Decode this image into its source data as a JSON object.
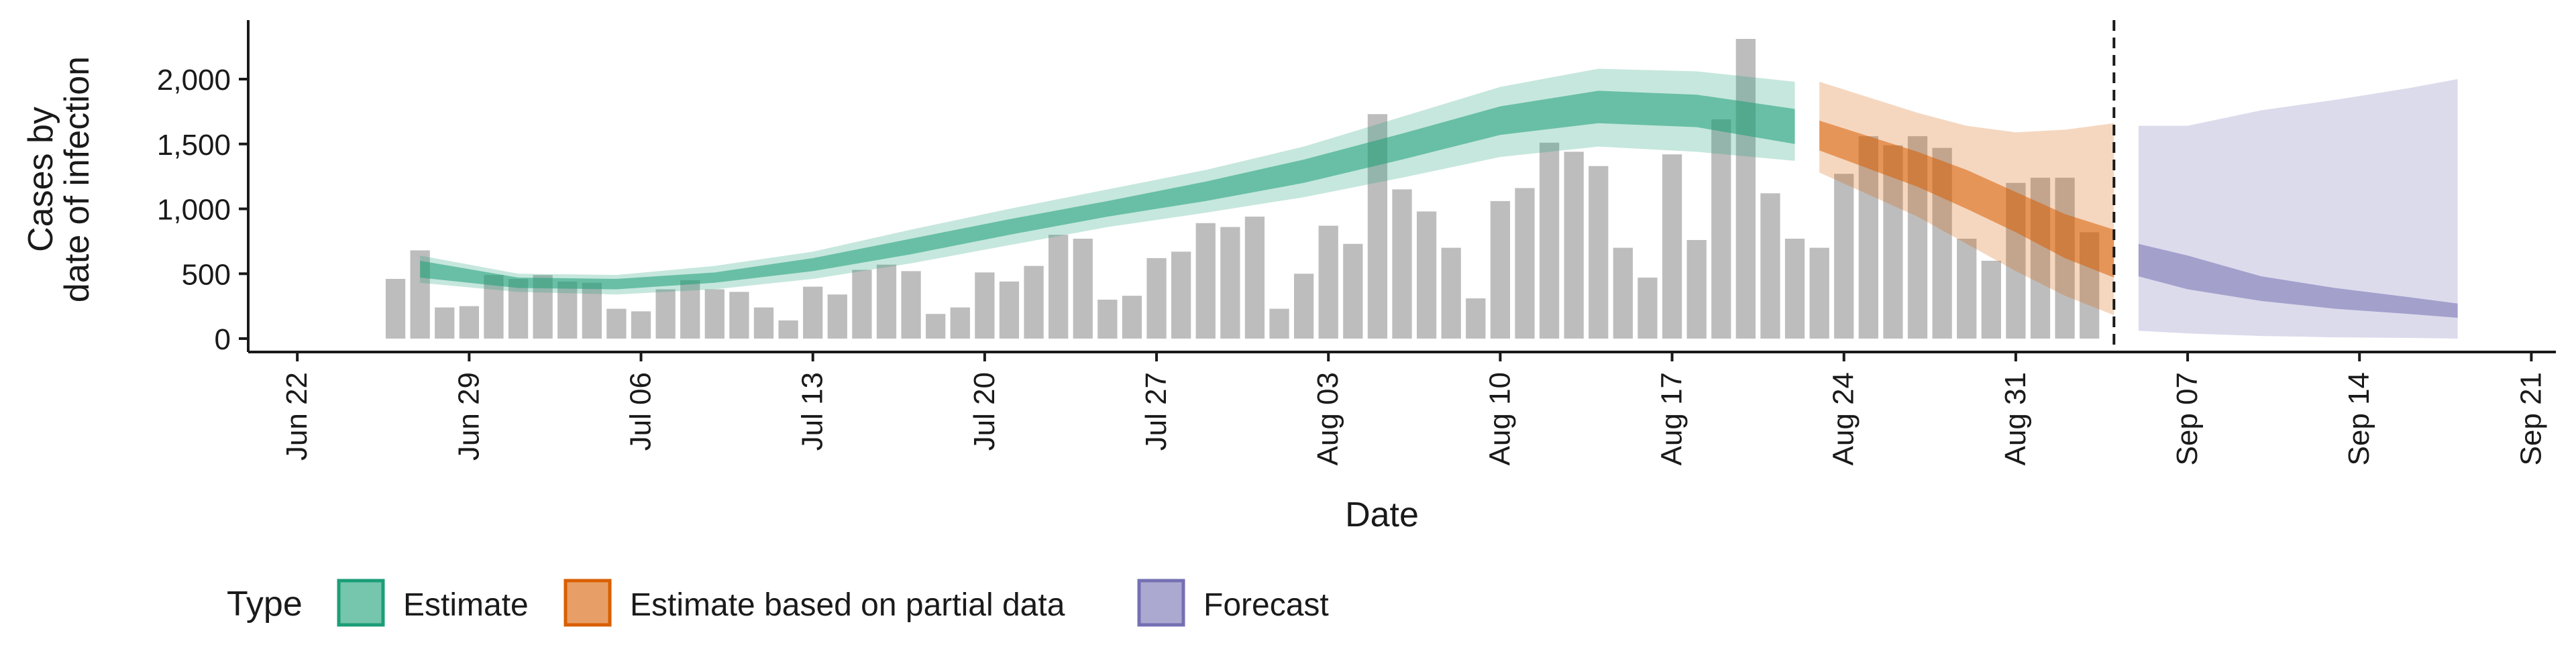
{
  "chart_data": {
    "type": "bar",
    "ylabel_lines": [
      "Cases by",
      "date of infection"
    ],
    "xlabel": "Date",
    "ylim": [
      0,
      2450
    ],
    "xlim": [
      "2020-06-20",
      "2020-09-22"
    ],
    "y_ticks": [
      0,
      500,
      1000,
      1500,
      2000
    ],
    "y_tick_labels": [
      "0",
      "500",
      "1,000",
      "1,500",
      "2,000"
    ],
    "x_ticks": [
      "2020-06-22",
      "2020-06-29",
      "2020-07-06",
      "2020-07-13",
      "2020-07-20",
      "2020-07-27",
      "2020-08-03",
      "2020-08-10",
      "2020-08-17",
      "2020-08-24",
      "2020-08-31",
      "2020-09-07",
      "2020-09-14",
      "2020-09-21"
    ],
    "x_tick_labels": [
      "Jun 22",
      "Jun 29",
      "Jul 06",
      "Jul 13",
      "Jul 20",
      "Jul 27",
      "Aug 03",
      "Aug 10",
      "Aug 17",
      "Aug 24",
      "Aug 31",
      "Sep 07",
      "Sep 14",
      "Sep 21"
    ],
    "grid": false,
    "legend": {
      "title": "Type",
      "position": "bottom",
      "entries": [
        {
          "label": "Estimate",
          "fill": "#1b9e77",
          "border": "#1b9e77"
        },
        {
          "label": "Estimate based on partial data",
          "fill": "#d95f02",
          "border": "#d95f02"
        },
        {
          "label": "Forecast",
          "fill": "#7570b3",
          "border": "#7570b3"
        }
      ]
    },
    "colors": {
      "bars": "#bdbdbd",
      "estimate": "#1b9e77",
      "partial": "#d95f02",
      "forecast": "#7570b3",
      "axis": "#1a1a1a"
    },
    "vline_date": "2020-09-04",
    "observed_cases": {
      "start_date": "2020-06-26",
      "values": [
        460,
        680,
        240,
        250,
        490,
        460,
        490,
        440,
        430,
        230,
        210,
        380,
        450,
        380,
        360,
        240,
        140,
        400,
        340,
        530,
        570,
        520,
        190,
        240,
        510,
        440,
        560,
        800,
        770,
        300,
        330,
        620,
        670,
        890,
        860,
        940,
        230,
        500,
        870,
        730,
        1730,
        1150,
        980,
        700,
        310,
        1060,
        1160,
        1510,
        1440,
        1330,
        700,
        470,
        1420,
        760,
        1690,
        2310,
        1120,
        770,
        700,
        1270,
        1560,
        1490,
        1560,
        1470,
        770,
        600,
        1200,
        1240,
        1240,
        820
      ]
    },
    "estimate": {
      "dates": [
        "2020-06-27",
        "2020-07-01",
        "2020-07-05",
        "2020-07-09",
        "2020-07-13",
        "2020-07-17",
        "2020-07-21",
        "2020-07-25",
        "2020-07-29",
        "2020-08-02",
        "2020-08-06",
        "2020-08-10",
        "2020-08-14",
        "2020-08-18",
        "2020-08-22"
      ],
      "median": [
        540,
        430,
        420,
        470,
        570,
        710,
        860,
        1000,
        1140,
        1290,
        1480,
        1680,
        1790,
        1750,
        1660
      ],
      "lower50": [
        470,
        390,
        380,
        430,
        520,
        650,
        800,
        940,
        1060,
        1200,
        1380,
        1570,
        1660,
        1630,
        1500
      ],
      "upper50": [
        600,
        470,
        460,
        510,
        620,
        770,
        920,
        1060,
        1210,
        1380,
        1580,
        1790,
        1910,
        1880,
        1770
      ],
      "lower90": [
        430,
        360,
        340,
        380,
        460,
        580,
        720,
        860,
        970,
        1090,
        1240,
        1400,
        1480,
        1440,
        1370
      ],
      "upper90": [
        640,
        500,
        490,
        560,
        670,
        840,
        1000,
        1150,
        1300,
        1480,
        1710,
        1940,
        2080,
        2060,
        1980
      ]
    },
    "partial_estimate": {
      "dates": [
        "2020-08-23",
        "2020-08-25",
        "2020-08-27",
        "2020-08-29",
        "2020-08-31",
        "2020-09-02",
        "2020-09-04"
      ],
      "median": [
        1560,
        1430,
        1300,
        1140,
        970,
        790,
        630
      ],
      "lower50": [
        1450,
        1310,
        1170,
        1000,
        820,
        620,
        470
      ],
      "upper50": [
        1680,
        1560,
        1440,
        1300,
        1130,
        960,
        840
      ],
      "lower90": [
        1280,
        1110,
        940,
        730,
        520,
        330,
        180
      ],
      "upper90": [
        1980,
        1860,
        1740,
        1640,
        1590,
        1610,
        1660
      ]
    },
    "forecast": {
      "dates": [
        "2020-09-05",
        "2020-09-07",
        "2020-09-10",
        "2020-09-13",
        "2020-09-16",
        "2020-09-18"
      ],
      "median": [
        590,
        510,
        390,
        320,
        270,
        250
      ],
      "lower50": [
        480,
        380,
        290,
        230,
        190,
        160
      ],
      "upper50": [
        730,
        640,
        480,
        390,
        320,
        270
      ],
      "lower90": [
        60,
        40,
        20,
        10,
        5,
        0
      ],
      "upper90": [
        1640,
        1640,
        1760,
        1840,
        1930,
        2000
      ]
    }
  }
}
